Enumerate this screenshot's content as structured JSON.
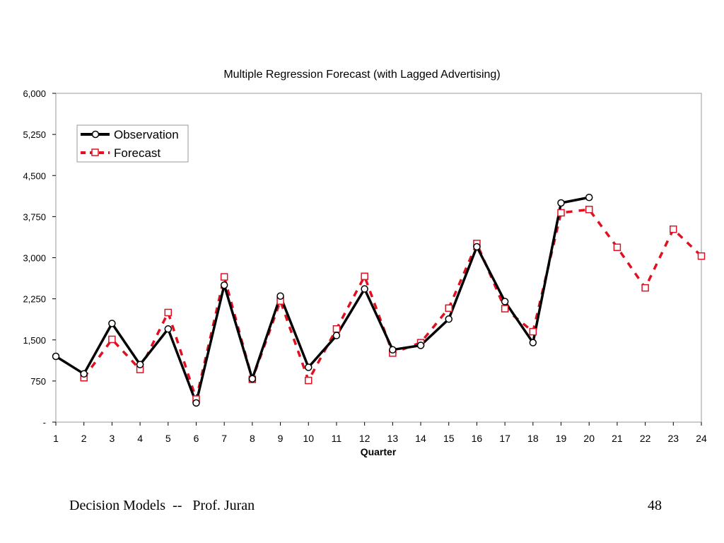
{
  "chart_data": {
    "type": "line",
    "title": "Multiple Regression Forecast (with Lagged Advertising)",
    "xlabel": "Quarter",
    "ylabel": "",
    "x": [
      1,
      2,
      3,
      4,
      5,
      6,
      7,
      8,
      9,
      10,
      11,
      12,
      13,
      14,
      15,
      16,
      17,
      18,
      19,
      20,
      21,
      22,
      23,
      24
    ],
    "ylim": [
      0,
      6000
    ],
    "yticks": [
      0,
      750,
      1500,
      2250,
      3000,
      3750,
      4500,
      5250,
      6000
    ],
    "ytick_labels": [
      "-",
      "750",
      "1,500",
      "2,250",
      "3,000",
      "3,750",
      "4,500",
      "5,250",
      "6,000"
    ],
    "grid": false,
    "legend_position": "top-left",
    "series": [
      {
        "name": "Observation",
        "color": "#000000",
        "marker": "circle",
        "line_style": "solid",
        "x": [
          1,
          2,
          3,
          4,
          5,
          6,
          7,
          8,
          9,
          10,
          11,
          12,
          13,
          14,
          15,
          16,
          17,
          18,
          19,
          20
        ],
        "values": [
          1200,
          880,
          1800,
          1050,
          1700,
          350,
          2500,
          790,
          2300,
          1000,
          1580,
          2430,
          1320,
          1400,
          1880,
          3200,
          2200,
          1450,
          4000,
          4100
        ]
      },
      {
        "name": "Forecast",
        "color": "#e01020",
        "marker": "square",
        "line_style": "dashed",
        "x": [
          2,
          3,
          4,
          5,
          6,
          7,
          8,
          9,
          10,
          11,
          12,
          13,
          14,
          15,
          16,
          17,
          18,
          19,
          20,
          21,
          22,
          23,
          24
        ],
        "values": [
          810,
          1510,
          960,
          2000,
          420,
          2650,
          780,
          2210,
          760,
          1700,
          2660,
          1260,
          1450,
          2080,
          3260,
          2070,
          1650,
          3820,
          3880,
          3190,
          2450,
          3520,
          3030
        ]
      }
    ]
  },
  "footer": {
    "left": "Decision Models  --   Prof. Juran",
    "right": "48"
  }
}
